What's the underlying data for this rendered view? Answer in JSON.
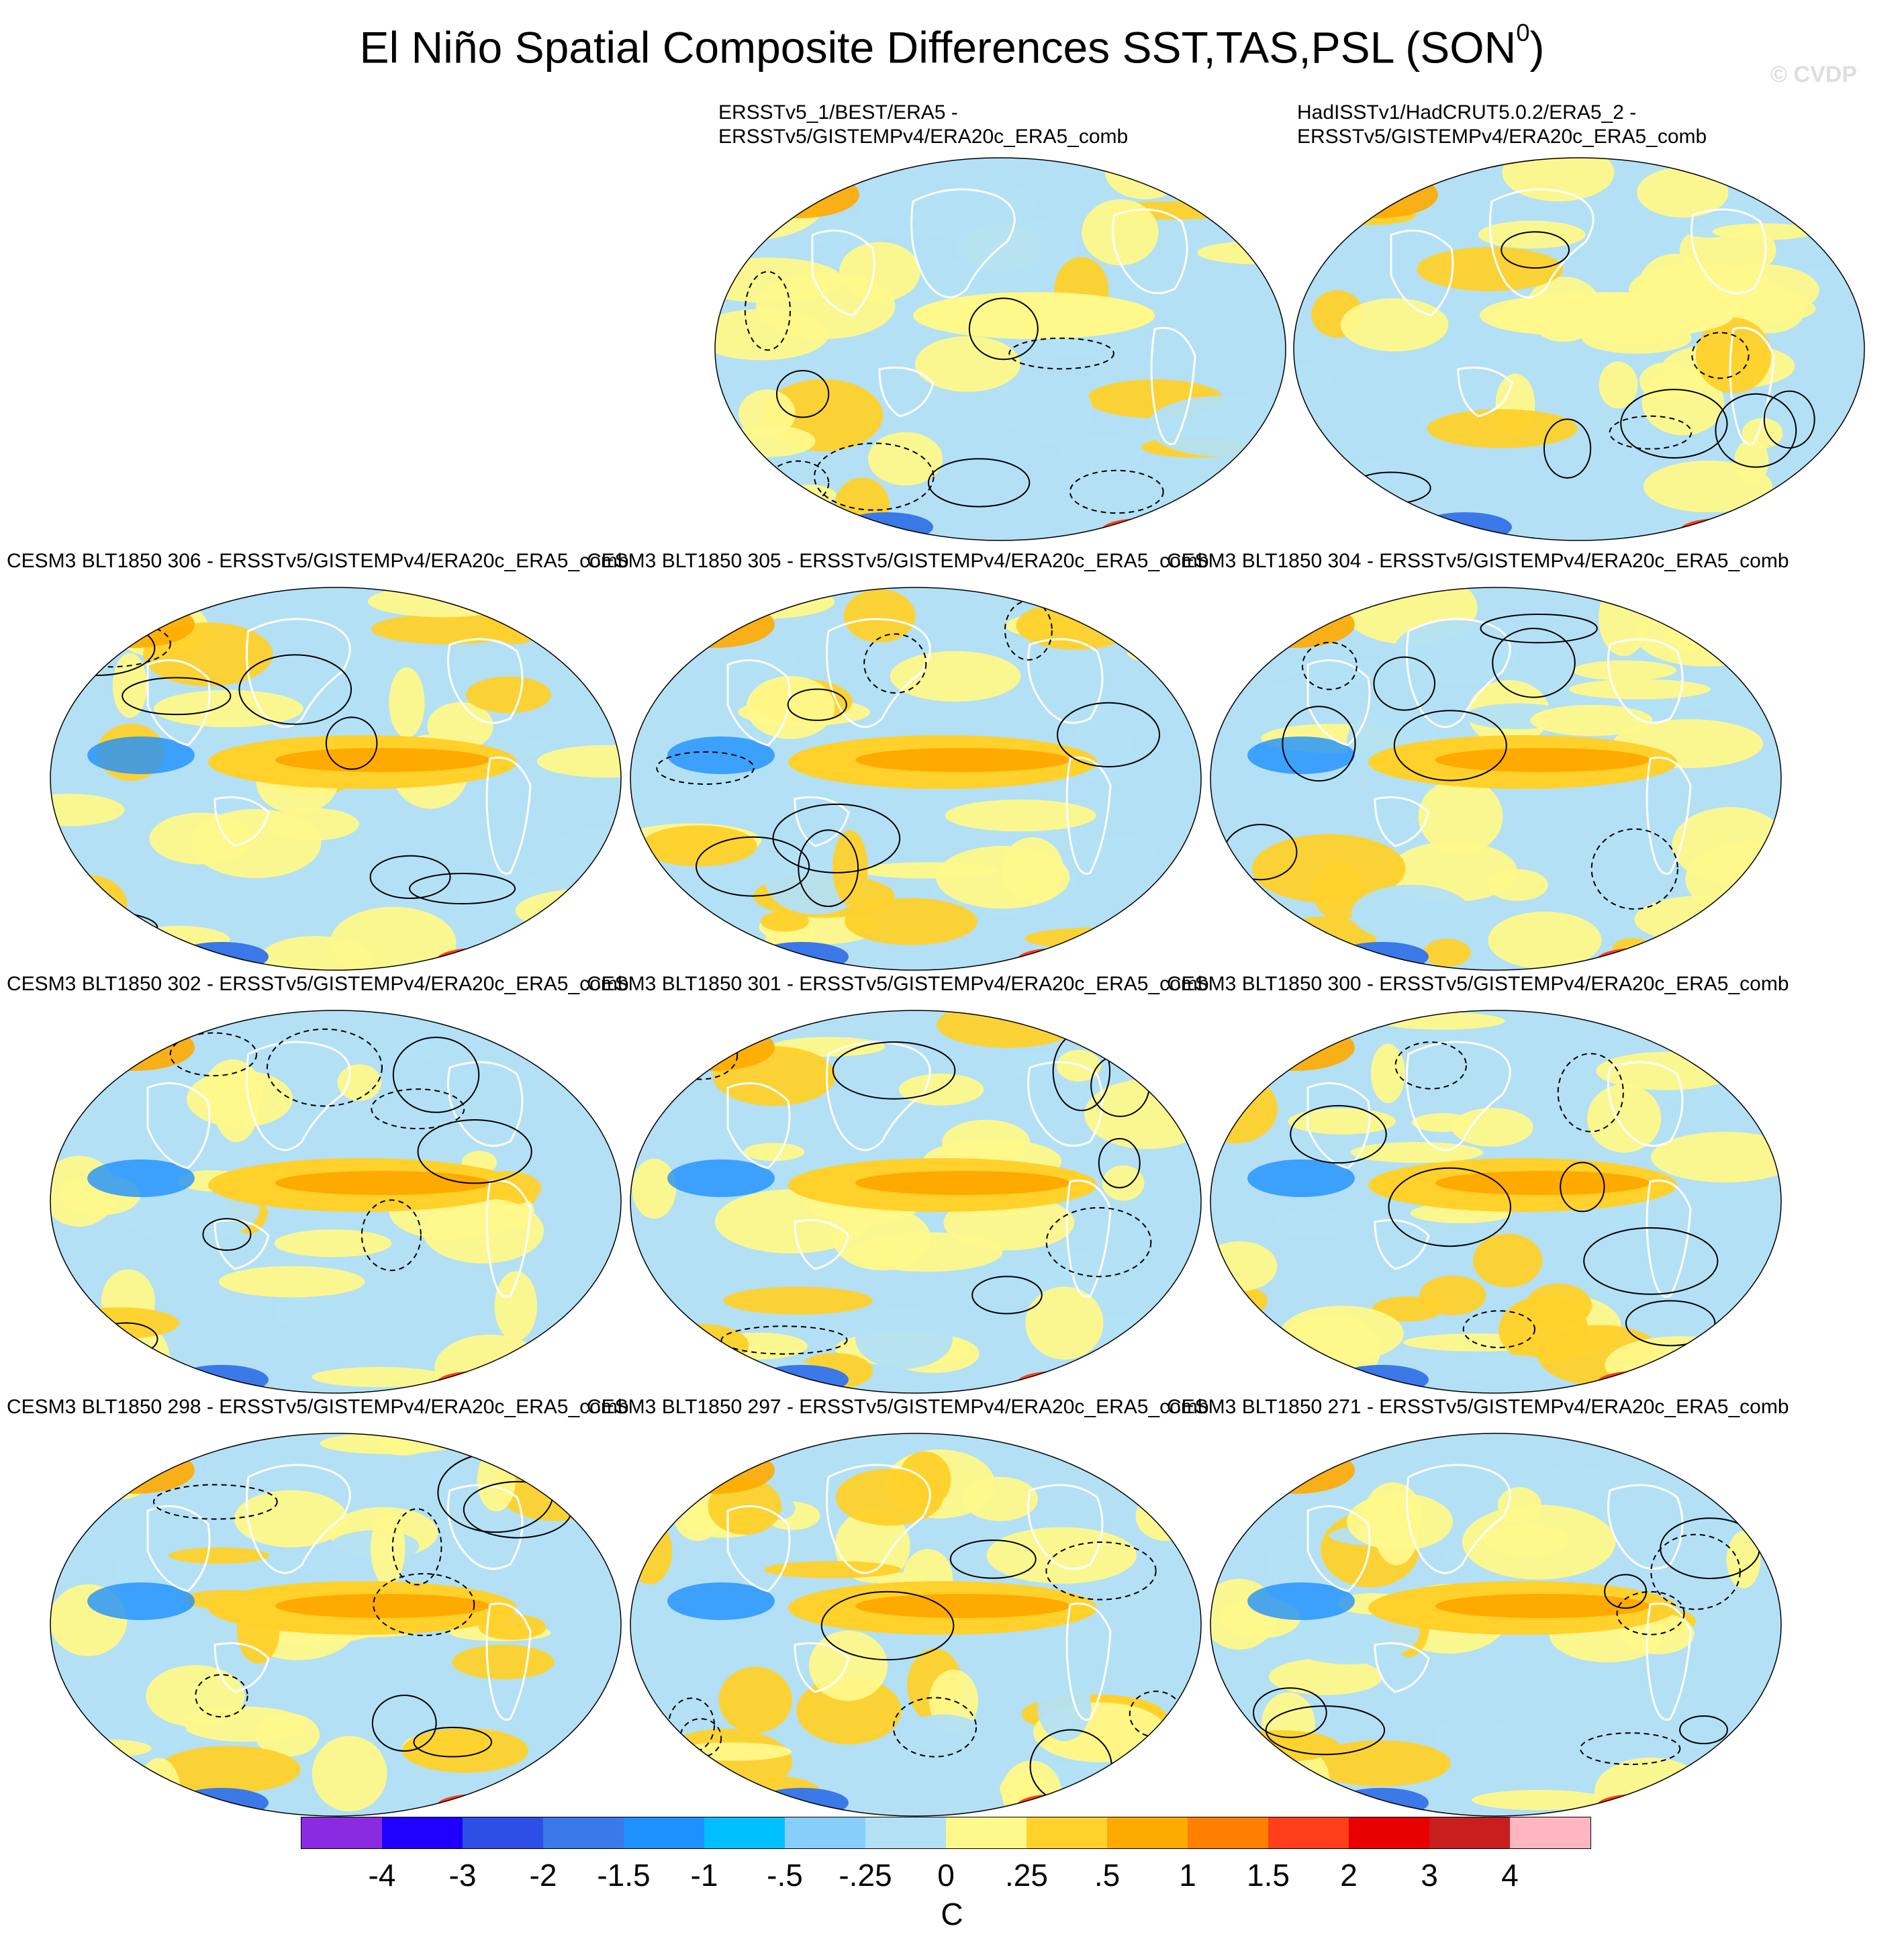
{
  "title_main": "El Niño Spatial Composite Differences SST,TAS,PSL (SON",
  "title_sup": "0",
  "title_close": ")",
  "watermark": "© CVDP",
  "panels": [
    {
      "id": "p1",
      "label": [
        "ERSSTv5_1/BEST/ERA5 -",
        "ERSSTv5/GISTEMPv4/ERA20c_ERA5_comb"
      ]
    },
    {
      "id": "p2",
      "label": [
        "HadISSTv1/HadCRUT5.0.2/ERA5_2 -",
        "ERSSTv5/GISTEMPv4/ERA20c_ERA5_comb"
      ]
    },
    {
      "id": "p3",
      "label": [
        "CESM3 BLT1850 306 - ERSSTv5/GISTEMPv4/ERA20c_ERA5_comb"
      ]
    },
    {
      "id": "p4",
      "label": [
        "CESM3 BLT1850 305 - ERSSTv5/GISTEMPv4/ERA20c_ERA5_comb"
      ]
    },
    {
      "id": "p5",
      "label": [
        "CESM3 BLT1850 304 - ERSSTv5/GISTEMPv4/ERA20c_ERA5_comb"
      ]
    },
    {
      "id": "p6",
      "label": [
        "CESM3 BLT1850 302 - ERSSTv5/GISTEMPv4/ERA20c_ERA5_comb"
      ]
    },
    {
      "id": "p7",
      "label": [
        "CESM3 BLT1850 301 - ERSSTv5/GISTEMPv4/ERA20c_ERA5_comb"
      ]
    },
    {
      "id": "p8",
      "label": [
        "CESM3 BLT1850 300 - ERSSTv5/GISTEMPv4/ERA20c_ERA5_comb"
      ]
    },
    {
      "id": "p9",
      "label": [
        "CESM3 BLT1850 298 - ERSSTv5/GISTEMPv4/ERA20c_ERA5_comb"
      ]
    },
    {
      "id": "p10",
      "label": [
        "CESM3 BLT1850 297 - ERSSTv5/GISTEMPv4/ERA20c_ERA5_comb"
      ]
    },
    {
      "id": "p11",
      "label": [
        "CESM3 BLT1850 271 - ERSSTv5/GISTEMPv4/ERA20c_ERA5_comb"
      ]
    }
  ],
  "colorbar": {
    "colors": [
      "#8a2be2",
      "#1f00ff",
      "#2e4fe6",
      "#3b78e8",
      "#1e90ff",
      "#00bfff",
      "#87cefa",
      "#b3e0f5",
      "#fff88a",
      "#ffd12a",
      "#ffaa00",
      "#ff7f00",
      "#ff3e1a",
      "#e80000",
      "#c81e1e",
      "#ffb6c1"
    ],
    "ticks": [
      "-4",
      "-3",
      "-2",
      "-1.5",
      "-1",
      "-.5",
      "-.25",
      "0",
      ".25",
      ".5",
      "1",
      "1.5",
      "2",
      "3",
      "4"
    ],
    "units": "C"
  }
}
